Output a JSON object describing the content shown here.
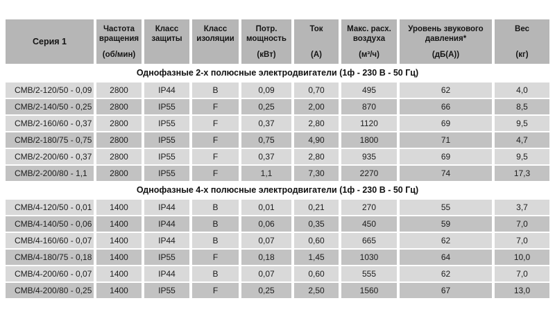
{
  "colors": {
    "header_bg": "#b6b6b6",
    "row_light": "#d9d9d9",
    "row_dark": "#c2c2c2",
    "section_bg": "#ffffff",
    "text": "#1c1c1c"
  },
  "table": {
    "columns": [
      {
        "title": "Серия 1",
        "unit": ""
      },
      {
        "title": "Частота вращения",
        "unit": "(об/мин)"
      },
      {
        "title": "Класс защиты",
        "unit": ""
      },
      {
        "title": "Класс изоляции",
        "unit": ""
      },
      {
        "title": "Потр. мощность",
        "unit": "(кВт)"
      },
      {
        "title": "Ток",
        "unit": "(А)"
      },
      {
        "title": "Макс. расх. воздуха",
        "unit": "(м³/ч)"
      },
      {
        "title": "Уровень звукового давления*",
        "unit": "(дБ(А))"
      },
      {
        "title": "Вес",
        "unit": "(кг)"
      }
    ],
    "sections": [
      {
        "title": "Однофазные 2-х полюсные электродвигатели (1ф - 230 В - 50 Гц)",
        "rows": [
          [
            "CMB/2-120/50 - 0,09",
            "2800",
            "IP44",
            "B",
            "0,09",
            "0,70",
            "495",
            "62",
            "4,0"
          ],
          [
            "CMB/2-140/50 - 0,25",
            "2800",
            "IP55",
            "F",
            "0,25",
            "2,00",
            "870",
            "66",
            "8,5"
          ],
          [
            "CMB/2-160/60 - 0,37",
            "2800",
            "IP55",
            "F",
            "0,37",
            "2,80",
            "1120",
            "69",
            "9,5"
          ],
          [
            "CMB/2-180/75 - 0,75",
            "2800",
            "IP55",
            "F",
            "0,75",
            "4,90",
            "1800",
            "71",
            "4,7"
          ],
          [
            "CMB/2-200/60 - 0,37",
            "2800",
            "IP55",
            "F",
            "0,37",
            "2,80",
            "935",
            "69",
            "9,5"
          ],
          [
            "CMB/2-200/80 - 1,1",
            "2800",
            "IP55",
            "F",
            "1,1",
            "7,30",
            "2270",
            "74",
            "17,3"
          ]
        ]
      },
      {
        "title": "Однофазные 4-х полюсные электродвигатели (1ф - 230 В - 50 Гц)",
        "rows": [
          [
            "CMB/4-120/50 - 0,01",
            "1400",
            "IP44",
            "B",
            "0,01",
            "0,21",
            "270",
            "55",
            "3,7"
          ],
          [
            "CMB/4-140/50 - 0,06",
            "1400",
            "IP44",
            "B",
            "0,06",
            "0,35",
            "450",
            "59",
            "7,0"
          ],
          [
            "CMB/4-160/60 - 0,07",
            "1400",
            "IP44",
            "B",
            "0,07",
            "0,60",
            "665",
            "62",
            "7,0"
          ],
          [
            "CMB/4-180/75 - 0,18",
            "1400",
            "IP55",
            "F",
            "0,18",
            "1,45",
            "1030",
            "64",
            "10,0"
          ],
          [
            "CMB/4-200/60 - 0,07",
            "1400",
            "IP44",
            "B",
            "0,07",
            "0,60",
            "555",
            "62",
            "7,0"
          ],
          [
            "CMB/4-200/80 - 0,25",
            "1400",
            "IP55",
            "F",
            "0,25",
            "2,50",
            "1560",
            "67",
            "13,0"
          ]
        ]
      }
    ]
  }
}
